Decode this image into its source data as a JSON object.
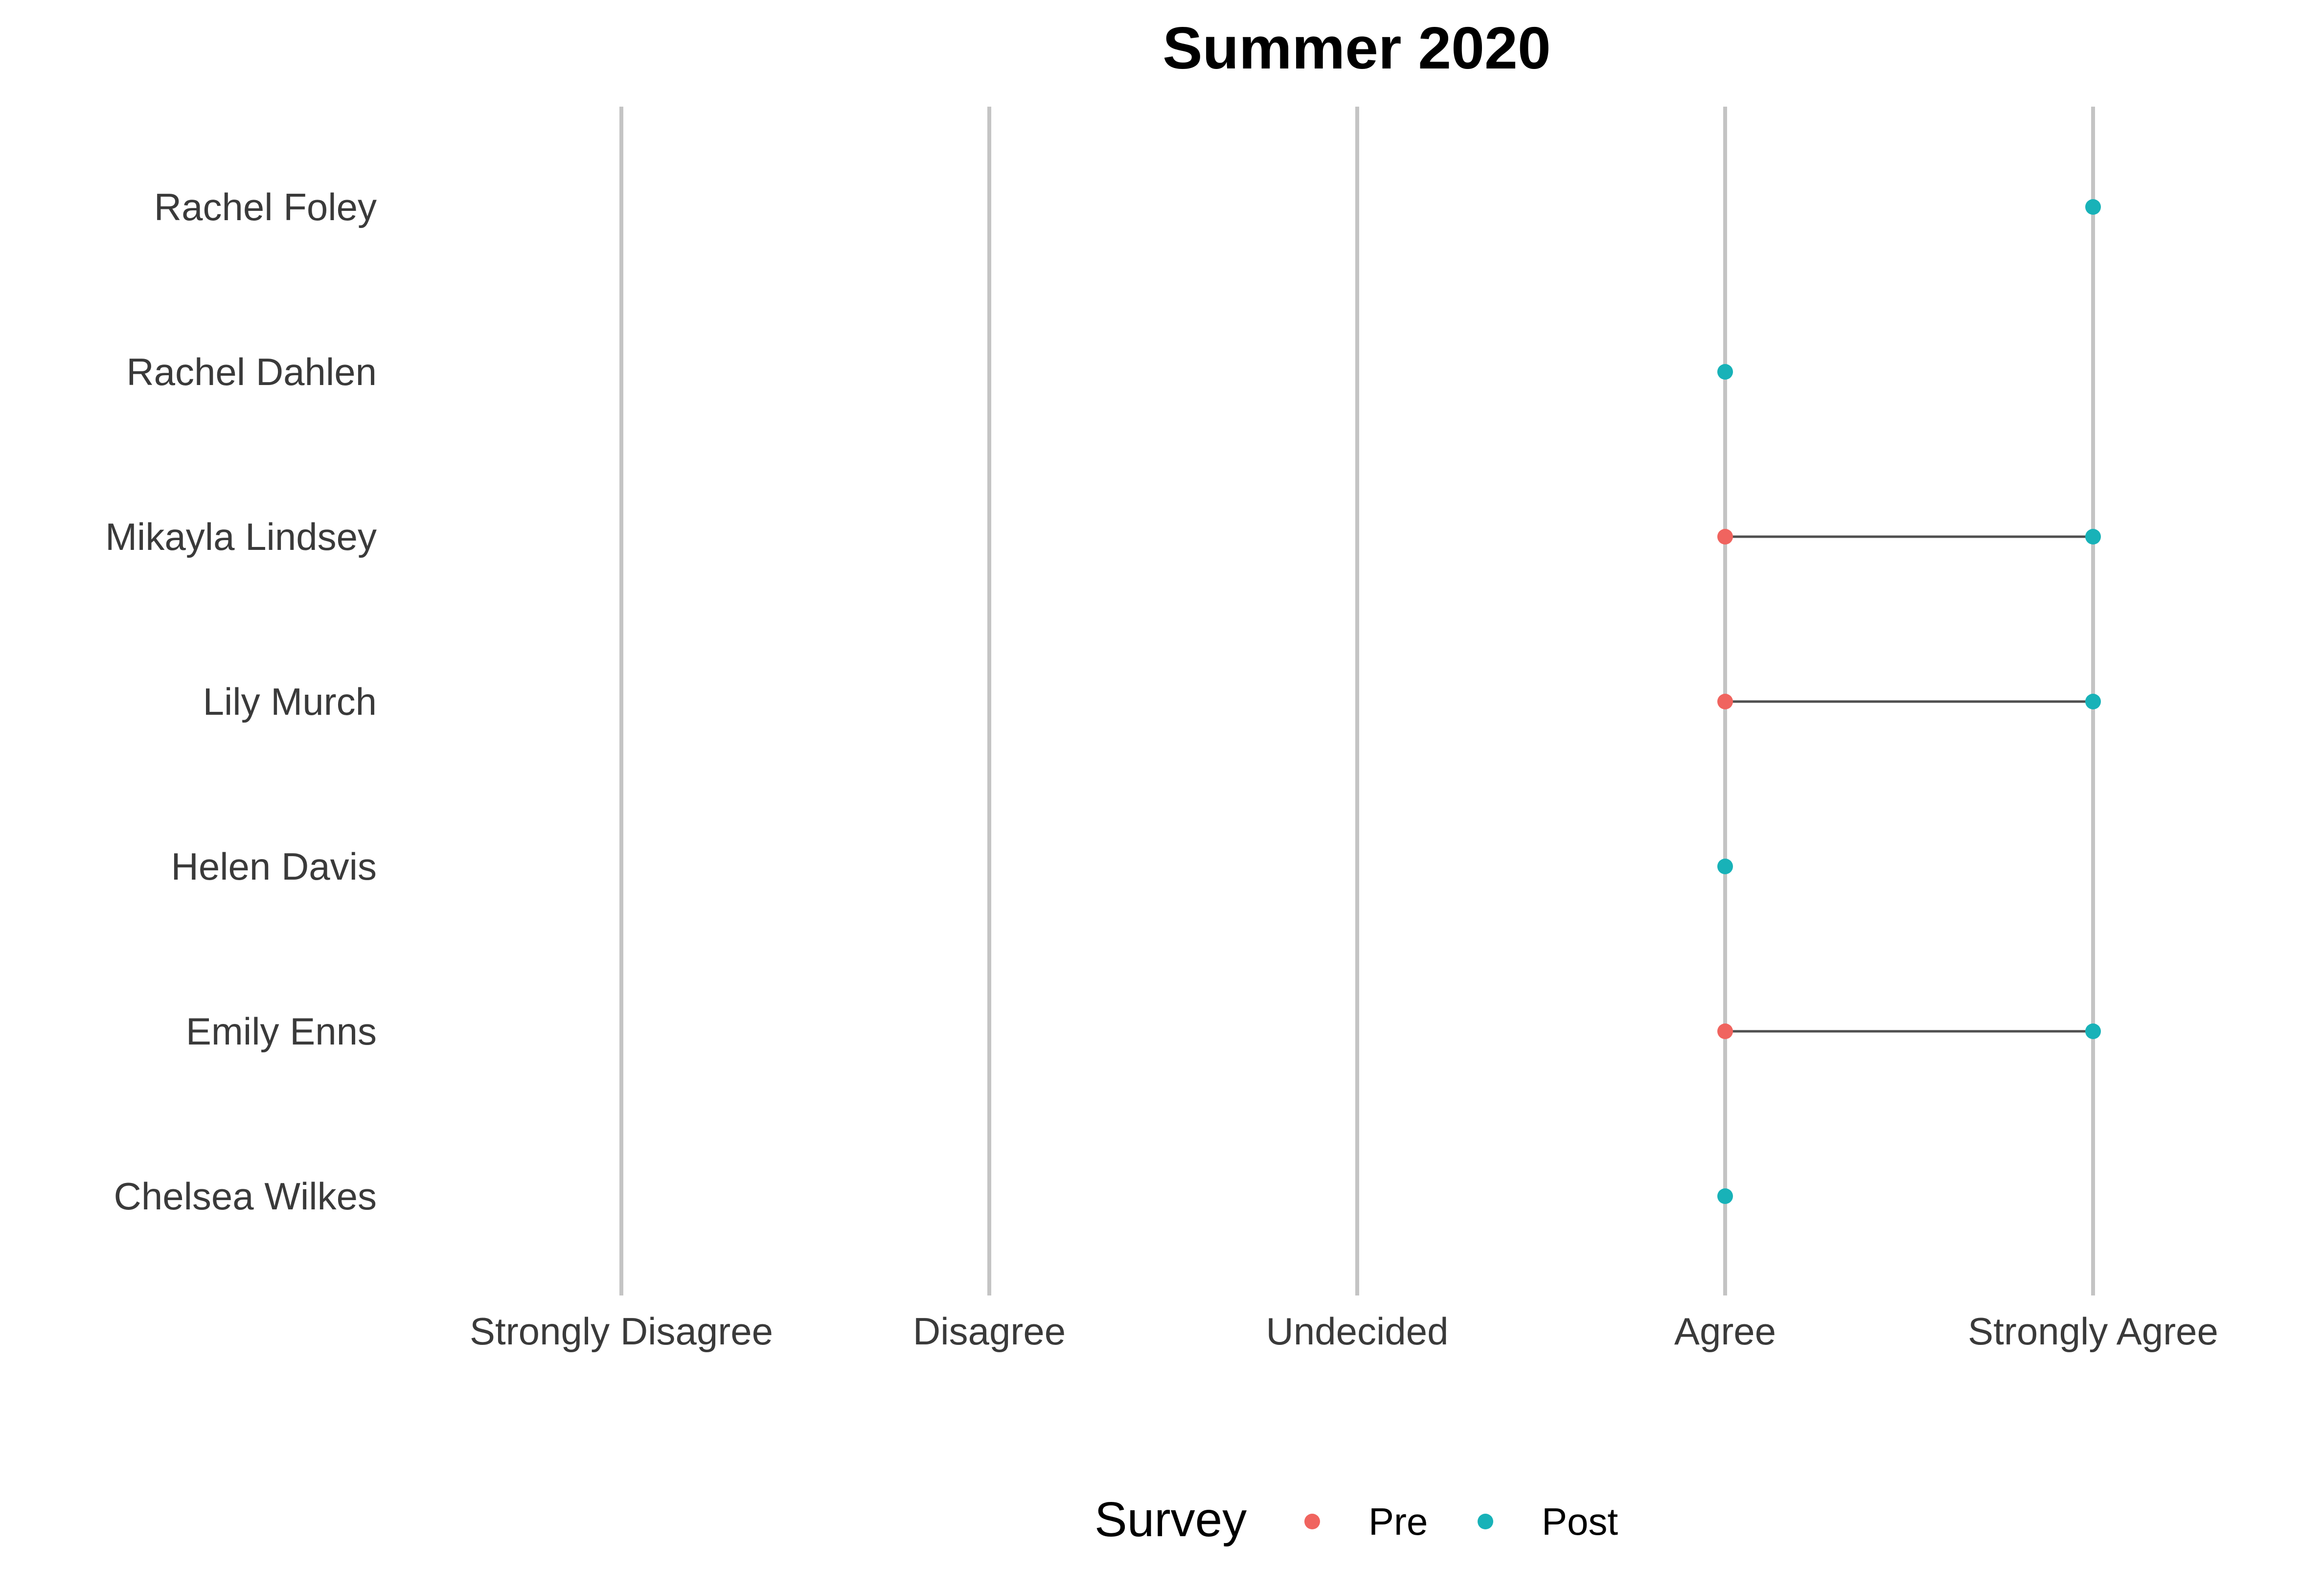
{
  "chart_data": {
    "type": "dumbbell",
    "title": "Summer 2020",
    "xlabel": "",
    "ylabel": "",
    "x_categories": [
      "Strongly Disagree",
      "Disagree",
      "Undecided",
      "Agree",
      "Strongly Agree"
    ],
    "y_categories": [
      "Rachel Foley",
      "Rachel Dahlen",
      "Mikayla Lindsey",
      "Lily Murch",
      "Helen Davis",
      "Emily Enns",
      "Chelsea Wilkes"
    ],
    "series": [
      {
        "name": "Pre",
        "color": "#F0645F",
        "values": [
          null,
          null,
          "Agree",
          "Agree",
          null,
          "Agree",
          null
        ]
      },
      {
        "name": "Post",
        "color": "#18B2B8",
        "values": [
          "Strongly Agree",
          "Agree",
          "Strongly Agree",
          "Strongly Agree",
          "Agree",
          "Strongly Agree",
          "Agree"
        ]
      }
    ],
    "connector_color": "#505050",
    "gridline_color": "#C4C4C4",
    "legend": {
      "title": "Survey",
      "position": "bottom"
    },
    "grid": {
      "vertical": true,
      "horizontal": false
    }
  }
}
